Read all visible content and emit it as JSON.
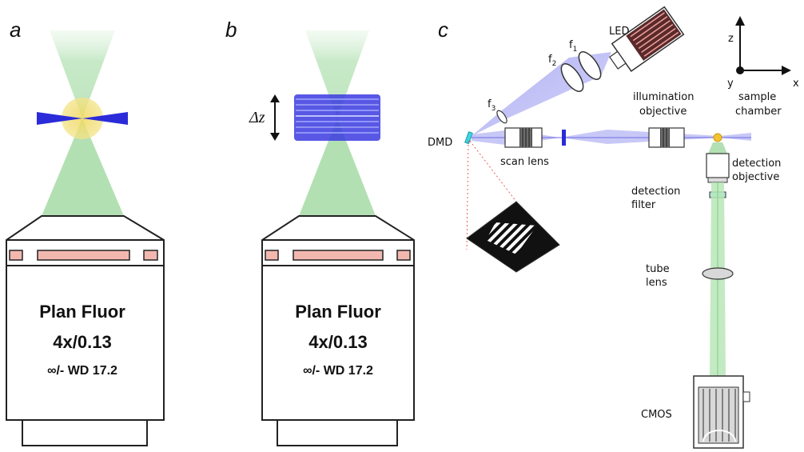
{
  "panel_a": {
    "letter": "a",
    "objective": {
      "line1": "Plan Fluor",
      "line2": "4x/0.13",
      "line3": "∞/- WD 17.2"
    }
  },
  "panel_b": {
    "letter": "b",
    "delta_label": "Δz",
    "objective": {
      "line1": "Plan Fluor",
      "line2": "4x/0.13",
      "line3": "∞/- WD 17.2"
    }
  },
  "panel_c": {
    "letter": "c",
    "labels": {
      "led": "LED",
      "f1": "f",
      "f1_sub": "1",
      "f2": "f",
      "f2_sub": "2",
      "f3": "f",
      "f3_sub": "3",
      "dmd": "DMD",
      "scan_lens": "scan lens",
      "illumination_objective_1": "illumination",
      "illumination_objective_2": "objective",
      "sample_chamber_1": "sample",
      "sample_chamber_2": "chamber",
      "detection_objective_1": "detection",
      "detection_objective_2": "objective",
      "detection_filter_1": "detection",
      "detection_filter_2": "filter",
      "tube_lens_1": "tube",
      "tube_lens_2": "lens",
      "cmos": "CMOS"
    },
    "axes": {
      "z": "z",
      "y": "y",
      "x": "x"
    }
  },
  "colors": {
    "detection_green": "#b9e3b9",
    "illumination_blue": "#2b2bd9",
    "beam_violet": "#9a9af0",
    "focus_yellow": "#f3e06a",
    "pink_window": "#f2b8b0",
    "dmd_cyan": "#3fd6e0"
  }
}
